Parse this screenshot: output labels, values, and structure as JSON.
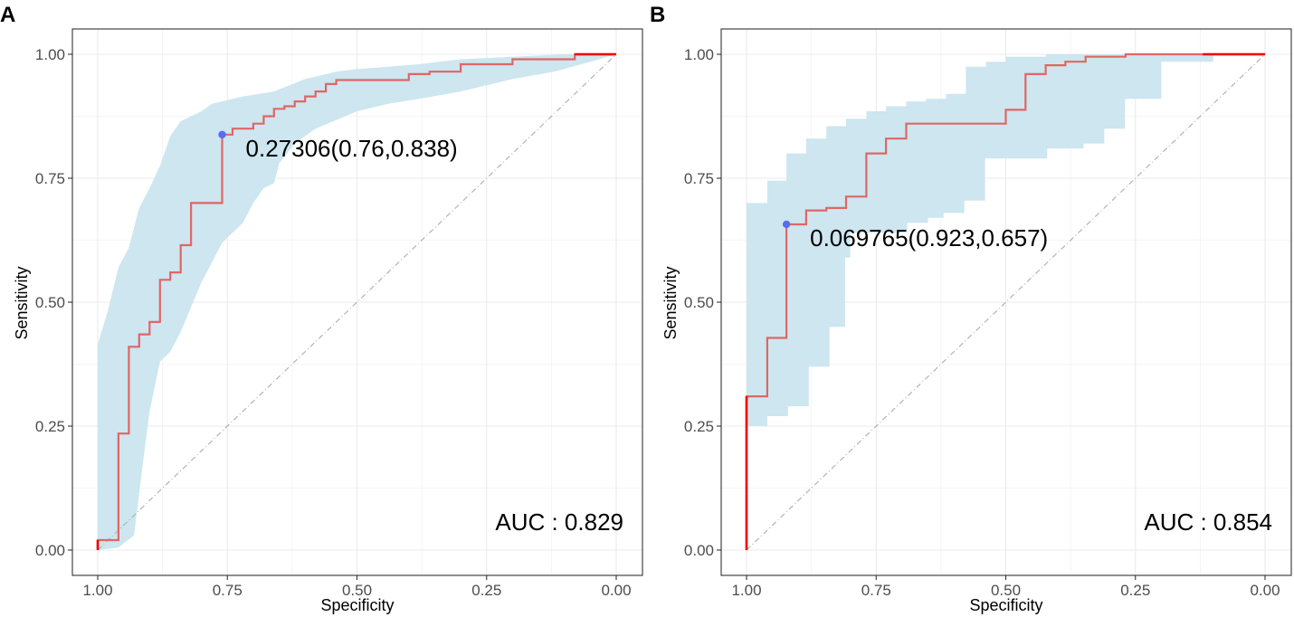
{
  "chart_data": [
    {
      "type": "line",
      "panel_label": "A",
      "xlabel": "Specificity",
      "ylabel": "Sensitivity",
      "xlim": [
        1.0,
        0.0
      ],
      "ylim": [
        0.0,
        1.0
      ],
      "x_ticks": [
        "1.00",
        "0.75",
        "0.50",
        "0.25",
        "0.00"
      ],
      "y_ticks": [
        "0.00",
        "0.25",
        "0.50",
        "0.75",
        "1.00"
      ],
      "grid": true,
      "auc_label": "AUC : 0.829",
      "threshold_label": "0.27306(0.76,0.838)",
      "best_point": {
        "specificity": 0.76,
        "sensitivity": 0.838
      },
      "colors": {
        "curve": "#e06666",
        "band": "#cde6ef",
        "point": "#5b6bf0",
        "diagonal": "#b3b3b3",
        "end": "#ee0000"
      },
      "roc": [
        [
          1.0,
          0.0
        ],
        [
          1.0,
          0.02
        ],
        [
          0.96,
          0.02
        ],
        [
          0.96,
          0.235
        ],
        [
          0.94,
          0.235
        ],
        [
          0.94,
          0.41
        ],
        [
          0.92,
          0.41
        ],
        [
          0.92,
          0.435
        ],
        [
          0.9,
          0.435
        ],
        [
          0.9,
          0.46
        ],
        [
          0.88,
          0.46
        ],
        [
          0.88,
          0.545
        ],
        [
          0.86,
          0.545
        ],
        [
          0.86,
          0.56
        ],
        [
          0.84,
          0.56
        ],
        [
          0.84,
          0.615
        ],
        [
          0.82,
          0.615
        ],
        [
          0.82,
          0.7
        ],
        [
          0.76,
          0.7
        ],
        [
          0.76,
          0.838
        ],
        [
          0.74,
          0.838
        ],
        [
          0.74,
          0.85
        ],
        [
          0.7,
          0.85
        ],
        [
          0.7,
          0.86
        ],
        [
          0.68,
          0.86
        ],
        [
          0.68,
          0.875
        ],
        [
          0.66,
          0.875
        ],
        [
          0.66,
          0.89
        ],
        [
          0.64,
          0.89
        ],
        [
          0.64,
          0.895
        ],
        [
          0.62,
          0.895
        ],
        [
          0.62,
          0.905
        ],
        [
          0.6,
          0.905
        ],
        [
          0.6,
          0.915
        ],
        [
          0.58,
          0.915
        ],
        [
          0.58,
          0.925
        ],
        [
          0.56,
          0.925
        ],
        [
          0.56,
          0.94
        ],
        [
          0.54,
          0.94
        ],
        [
          0.54,
          0.948
        ],
        [
          0.4,
          0.948
        ],
        [
          0.4,
          0.96
        ],
        [
          0.36,
          0.96
        ],
        [
          0.36,
          0.965
        ],
        [
          0.3,
          0.965
        ],
        [
          0.3,
          0.98
        ],
        [
          0.2,
          0.98
        ],
        [
          0.2,
          0.99
        ],
        [
          0.08,
          0.99
        ],
        [
          0.08,
          1.0
        ],
        [
          0.0,
          1.0
        ]
      ],
      "ci_upper": [
        [
          1.0,
          0.415
        ],
        [
          0.98,
          0.485
        ],
        [
          0.96,
          0.57
        ],
        [
          0.94,
          0.61
        ],
        [
          0.92,
          0.69
        ],
        [
          0.9,
          0.73
        ],
        [
          0.88,
          0.775
        ],
        [
          0.86,
          0.835
        ],
        [
          0.84,
          0.865
        ],
        [
          0.82,
          0.875
        ],
        [
          0.8,
          0.885
        ],
        [
          0.78,
          0.9
        ],
        [
          0.76,
          0.905
        ],
        [
          0.72,
          0.915
        ],
        [
          0.66,
          0.925
        ],
        [
          0.6,
          0.95
        ],
        [
          0.54,
          0.965
        ],
        [
          0.5,
          0.97
        ],
        [
          0.44,
          0.975
        ],
        [
          0.38,
          0.98
        ],
        [
          0.3,
          0.99
        ],
        [
          0.2,
          0.995
        ],
        [
          0.1,
          1.0
        ],
        [
          0.0,
          1.0
        ]
      ],
      "ci_lower": [
        [
          1.0,
          0.0
        ],
        [
          0.96,
          0.005
        ],
        [
          0.93,
          0.03
        ],
        [
          0.91,
          0.2
        ],
        [
          0.9,
          0.28
        ],
        [
          0.88,
          0.38
        ],
        [
          0.86,
          0.4
        ],
        [
          0.84,
          0.44
        ],
        [
          0.82,
          0.49
        ],
        [
          0.8,
          0.54
        ],
        [
          0.78,
          0.58
        ],
        [
          0.76,
          0.62
        ],
        [
          0.74,
          0.64
        ],
        [
          0.72,
          0.66
        ],
        [
          0.7,
          0.7
        ],
        [
          0.68,
          0.73
        ],
        [
          0.66,
          0.74
        ],
        [
          0.65,
          0.78
        ],
        [
          0.62,
          0.82
        ],
        [
          0.58,
          0.85
        ],
        [
          0.5,
          0.885
        ],
        [
          0.44,
          0.9
        ],
        [
          0.38,
          0.91
        ],
        [
          0.3,
          0.925
        ],
        [
          0.2,
          0.95
        ],
        [
          0.12,
          0.965
        ],
        [
          0.05,
          0.985
        ],
        [
          0.0,
          1.0
        ]
      ]
    },
    {
      "type": "line",
      "panel_label": "B",
      "xlabel": "Specificity",
      "ylabel": "Sensitivity",
      "xlim": [
        1.0,
        0.0
      ],
      "ylim": [
        0.0,
        1.0
      ],
      "x_ticks": [
        "1.00",
        "0.75",
        "0.50",
        "0.25",
        "0.00"
      ],
      "y_ticks": [
        "0.00",
        "0.25",
        "0.50",
        "0.75",
        "1.00"
      ],
      "grid": true,
      "auc_label": "AUC : 0.854",
      "threshold_label": "0.069765(0.923,0.657)",
      "best_point": {
        "specificity": 0.923,
        "sensitivity": 0.657
      },
      "colors": {
        "curve": "#e06666",
        "band": "#cde6ef",
        "point": "#5b6bf0",
        "diagonal": "#b3b3b3",
        "end": "#ee0000"
      },
      "roc": [
        [
          1.0,
          0.0
        ],
        [
          1.0,
          0.31
        ],
        [
          0.96,
          0.31
        ],
        [
          0.96,
          0.428
        ],
        [
          0.923,
          0.428
        ],
        [
          0.923,
          0.657
        ],
        [
          0.885,
          0.657
        ],
        [
          0.885,
          0.685
        ],
        [
          0.846,
          0.685
        ],
        [
          0.846,
          0.69
        ],
        [
          0.808,
          0.69
        ],
        [
          0.808,
          0.713
        ],
        [
          0.769,
          0.713
        ],
        [
          0.769,
          0.8
        ],
        [
          0.731,
          0.8
        ],
        [
          0.731,
          0.83
        ],
        [
          0.692,
          0.83
        ],
        [
          0.692,
          0.86
        ],
        [
          0.5,
          0.86
        ],
        [
          0.5,
          0.888
        ],
        [
          0.462,
          0.888
        ],
        [
          0.462,
          0.96
        ],
        [
          0.423,
          0.96
        ],
        [
          0.423,
          0.978
        ],
        [
          0.385,
          0.978
        ],
        [
          0.385,
          0.985
        ],
        [
          0.346,
          0.985
        ],
        [
          0.346,
          0.995
        ],
        [
          0.269,
          0.995
        ],
        [
          0.269,
          1.0
        ],
        [
          0.0,
          1.0
        ]
      ]
    }
  ]
}
